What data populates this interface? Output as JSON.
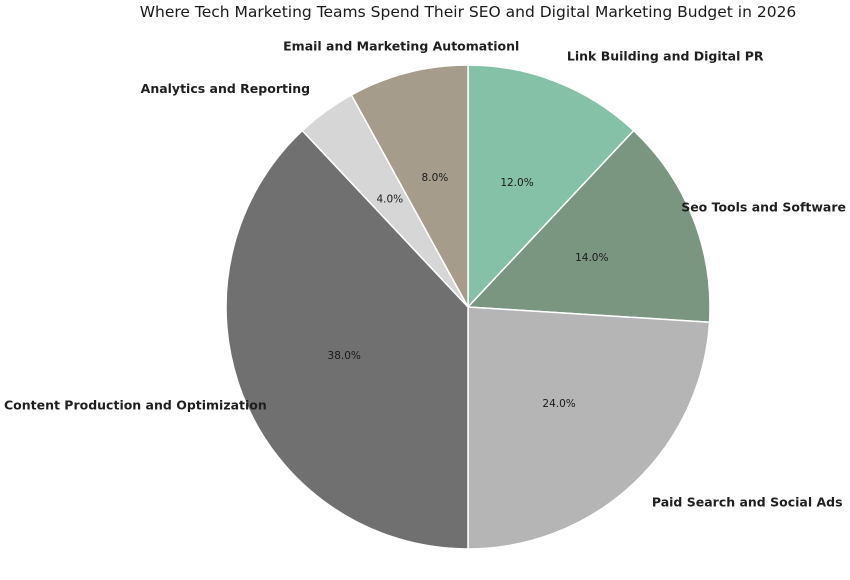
{
  "chart_data": {
    "type": "pie",
    "title": "Where Tech Marketing Teams Spend Their SEO and Digital Marketing Budget in 2026",
    "start_position": "top",
    "direction": "clockwise",
    "slices": [
      {
        "label": "Link Building and Digital PR",
        "value": 12.0,
        "value_label": "12.0%",
        "color": "#84c1a6"
      },
      {
        "label": "Seo Tools and Software",
        "value": 14.0,
        "value_label": "14.0%",
        "color": "#7b9680"
      },
      {
        "label": "Paid Search and Social Ads",
        "value": 24.0,
        "value_label": "24.0%",
        "color": "#b5b5b5"
      },
      {
        "label": "Content Production and Optimization",
        "value": 38.0,
        "value_label": "38.0%",
        "color": "#707070"
      },
      {
        "label": "Analytics and Reporting",
        "value": 4.0,
        "value_label": "4.0%",
        "color": "#d6d6d6"
      },
      {
        "label": "Email and Marketing Automationl",
        "value": 8.0,
        "value_label": "8.0%",
        "color": "#a69c8b"
      }
    ]
  }
}
